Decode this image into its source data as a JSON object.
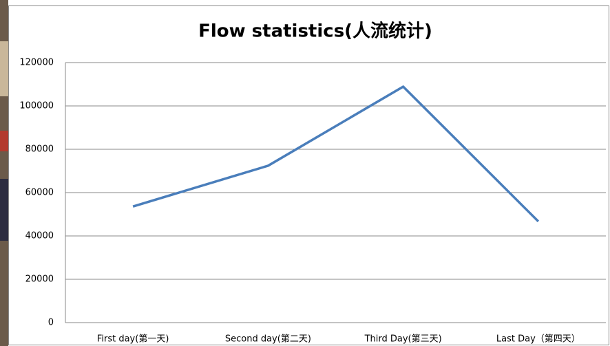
{
  "chart_data": {
    "type": "line",
    "title": "Flow statistics(人流统计)",
    "categories": [
      "First day(第一天)",
      "Second day(第二天)",
      "Third Day(第三天)",
      "Last Day（第四天）"
    ],
    "values": [
      53600,
      72400,
      108900,
      46700
    ],
    "color": "#4a7ebb",
    "ylim": [
      0,
      120000
    ],
    "yticks": [
      0,
      20000,
      40000,
      60000,
      80000,
      100000,
      120000
    ],
    "grid": true
  }
}
